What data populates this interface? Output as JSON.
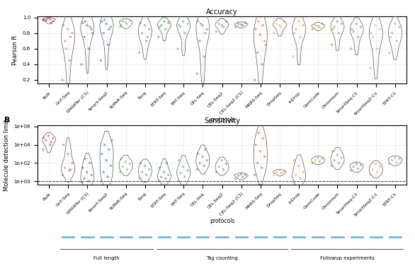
{
  "chart_data": [
    {
      "type": "violin",
      "title": "Accuracy",
      "xlabel": "protocols",
      "ylabel": "Pearson R",
      "categories": [
        "Bulk",
        "GnT-Seq",
        "SMARTer (C1)",
        "Smart-Seq2",
        "SUPeR-Seq",
        "Tang",
        "STRT-Seq",
        "BAT-Seq",
        "CEL-Seq",
        "CEL-Seq2",
        "CEL-Seq2 (C1)",
        "MARS-Seq",
        "DropSeq",
        "inDrop",
        "GemCode",
        "Chromium",
        "SmartSeq-C1",
        "SmartSeq2-C1",
        "STRT-C1"
      ],
      "colors": [
        "#e8493a",
        "#d07070",
        "#5b6b8c",
        "#3a7fc1",
        "#7dc47a",
        "#5aa55a",
        "#3cb04a",
        "#6fb08a",
        "#7b7ea8",
        "#8a8ab8",
        "#8080b0",
        "#e8663a",
        "#f0b070",
        "#f0a040",
        "#d9a030",
        "#c88a20",
        "#8888c0",
        "#d4b080",
        "#80c080"
      ],
      "values": [
        [
          0.97,
          0.98,
          0.96,
          0.95,
          0.99,
          0.97,
          0.93,
          0.98
        ],
        [
          0.2,
          0.45,
          0.7,
          0.8,
          0.85,
          0.9,
          0.75,
          0.6
        ],
        [
          0.4,
          0.6,
          0.75,
          0.85,
          0.9,
          0.93,
          0.88,
          0.95,
          0.8
        ],
        [
          0.45,
          0.65,
          0.8,
          0.88,
          0.92,
          0.95,
          0.85,
          0.97
        ],
        [
          0.88,
          0.92,
          0.95,
          0.96,
          0.94,
          0.9
        ],
        [
          0.55,
          0.7,
          0.8,
          0.85,
          0.9,
          0.93,
          0.75
        ],
        [
          0.75,
          0.85,
          0.9,
          0.93,
          0.95,
          0.88
        ],
        [
          0.6,
          0.8,
          0.88,
          0.92,
          0.95,
          0.9
        ],
        [
          0.28,
          0.5,
          0.7,
          0.85,
          0.9,
          0.95,
          0.8,
          0.92
        ],
        [
          0.82,
          0.88,
          0.92,
          0.95,
          0.9
        ],
        [
          0.88,
          0.9,
          0.92,
          0.93,
          0.91
        ],
        [
          0.2,
          0.4,
          0.55,
          0.7,
          0.78,
          0.85,
          0.9,
          0.95,
          0.65
        ],
        [
          0.8,
          0.88,
          0.92,
          0.95,
          0.9
        ],
        [
          0.5,
          0.75,
          0.85,
          0.9,
          0.95,
          0.8
        ],
        [
          0.85,
          0.88,
          0.9,
          0.92,
          0.89
        ],
        [
          0.65,
          0.8,
          0.88,
          0.92,
          0.95,
          0.85
        ],
        [
          0.6,
          0.75,
          0.82,
          0.88,
          0.92,
          0.85
        ],
        [
          0.35,
          0.6,
          0.75,
          0.85,
          0.9,
          0.8
        ],
        [
          0.55,
          0.7,
          0.8,
          0.88,
          0.92,
          0.75
        ]
      ],
      "ylim": [
        0.15,
        1.02
      ],
      "yticks": [
        0.2,
        0.4,
        0.6,
        0.8,
        1.0
      ],
      "grid": true
    },
    {
      "type": "violin",
      "title": "Sensitivity",
      "panel": "B",
      "xlabel": "protocols",
      "ylabel": "Molecule detection limit",
      "log": "y",
      "hline": 1,
      "categories": [
        "Bulk",
        "GnT-Seq",
        "SMARTer (C1)",
        "Smart-Seq2",
        "SUPeR-Seq",
        "Tang",
        "STRT-Seq",
        "BAT-Seq",
        "CEL-Seq",
        "CEL-Seq2",
        "CEL-Seq2 (C1)",
        "MARS-Seq",
        "DropSeq",
        "inDrop",
        "GemCode",
        "Chromium",
        "SmartSeq-C1",
        "SmartSeq2-C1",
        "STRT-C1"
      ],
      "colors": [
        "#e8493a",
        "#d07070",
        "#5b6b8c",
        "#3a7fc1",
        "#7dc47a",
        "#5aa55a",
        "#3cb04a",
        "#6fb08a",
        "#7b7ea8",
        "#8a8ab8",
        "#8080b0",
        "#e8663a",
        "#f0b070",
        "#f0a040",
        "#d9a030",
        "#c88a20",
        "#8888c0",
        "#d4b080",
        "#80c080"
      ],
      "values": [
        [
          3000,
          10000,
          30000,
          50000,
          100000,
          60000,
          20000
        ],
        [
          5,
          15,
          30,
          100,
          1000,
          10000,
          20
        ],
        [
          0.8,
          1,
          2,
          5,
          10,
          30,
          100,
          300
        ],
        [
          1,
          3,
          10,
          50,
          200,
          1000,
          3000,
          10000,
          30000
        ],
        [
          10,
          20,
          40,
          80,
          150,
          300
        ],
        [
          2,
          5,
          10,
          20,
          50,
          100
        ],
        [
          1,
          2,
          3,
          5,
          10,
          30,
          100
        ],
        [
          1,
          3,
          8,
          15,
          40,
          200
        ],
        [
          20,
          50,
          100,
          200,
          500,
          1000,
          3000
        ],
        [
          10,
          20,
          40,
          80,
          200
        ],
        [
          2,
          3,
          4,
          5,
          6
        ],
        [
          5,
          30,
          100,
          500,
          2000,
          10000,
          50000,
          200000
        ],
        [
          5,
          8,
          10,
          12,
          15
        ],
        [
          0.8,
          2,
          5,
          10,
          50,
          200
        ],
        [
          100,
          150,
          200,
          300,
          400
        ],
        [
          50,
          100,
          200,
          400,
          800,
          2000
        ],
        [
          15,
          25,
          40,
          60,
          80
        ],
        [
          5,
          10,
          20,
          40,
          80
        ],
        [
          80,
          120,
          200,
          300,
          400
        ]
      ],
      "ylim": [
        0.4,
        1500000
      ],
      "yticks": [
        {
          "value": 1,
          "label": "1e+00"
        },
        {
          "value": 100,
          "label": "1e+02"
        },
        {
          "value": 10000,
          "label": "1e+04"
        },
        {
          "value": 1000000,
          "label": "1e+06"
        }
      ],
      "grid": true,
      "groups": [
        {
          "label": "Full length",
          "start": "GnT-Seq",
          "end": "Tang"
        },
        {
          "label": "Tag counting",
          "start": "STRT-Seq",
          "end": "DropSeq"
        },
        {
          "label": "Followup experiments",
          "start": "inDrop",
          "end": "STRT-C1"
        }
      ]
    }
  ]
}
